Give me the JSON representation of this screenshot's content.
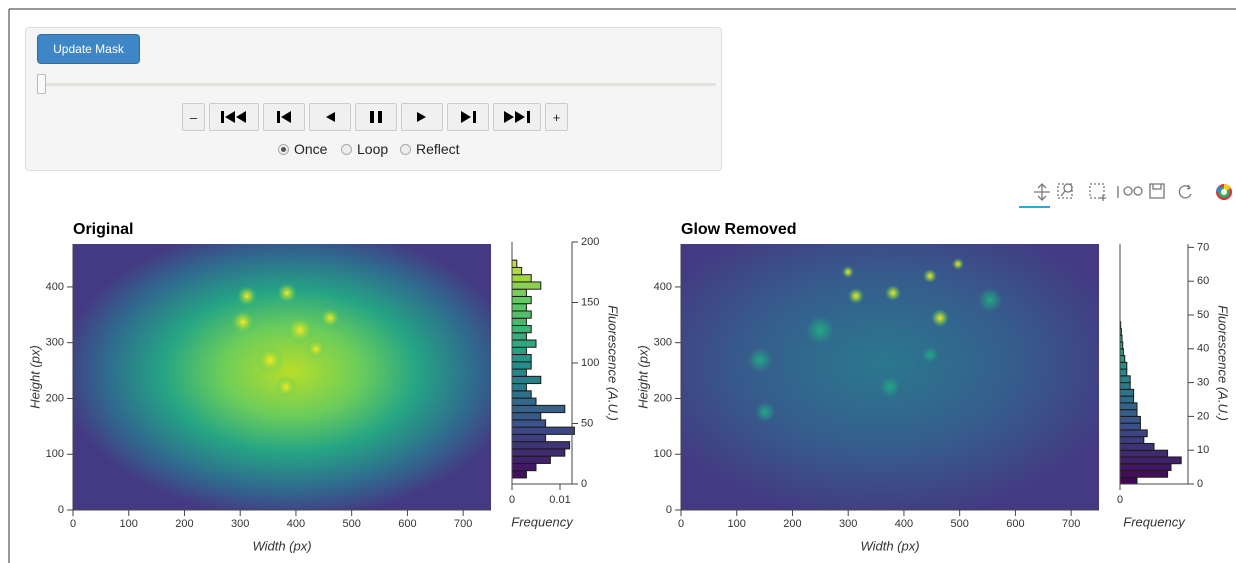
{
  "controls": {
    "update_button": "Update Mask",
    "step_minus": "–",
    "step_plus": "+",
    "loop_options": [
      "Once",
      "Loop",
      "Reflect"
    ],
    "selected_option": 0
  },
  "chart_data": [
    {
      "type": "image",
      "title": "Original",
      "xlabel": "Width (px)",
      "ylabel": "Height (px)",
      "xlim": [
        0,
        750
      ],
      "ylim": [
        0,
        477
      ],
      "xticks": [
        0,
        100,
        200,
        300,
        400,
        500,
        600,
        700
      ],
      "yticks": [
        0,
        100,
        200,
        300,
        400
      ]
    },
    {
      "type": "histogram",
      "xlabel": "Frequency",
      "ylabel": "Fluorescence (A.U.)",
      "xlim": [
        0,
        0.0125
      ],
      "ylim": [
        0,
        200
      ],
      "xticks": [
        0,
        0.01
      ],
      "yticks": [
        0,
        50,
        100,
        150,
        200
      ],
      "bins": [
        5,
        11,
        17,
        23,
        29,
        35,
        41,
        47,
        53,
        59,
        65,
        71,
        77,
        83,
        89,
        95,
        101,
        107,
        113,
        119,
        125,
        131,
        137,
        143,
        149,
        155,
        161,
        167,
        173,
        179,
        185
      ],
      "values": [
        0.003,
        0.005,
        0.008,
        0.011,
        0.012,
        0.007,
        0.013,
        0.007,
        0.006,
        0.011,
        0.005,
        0.004,
        0.003,
        0.006,
        0.003,
        0.004,
        0.004,
        0.003,
        0.005,
        0.003,
        0.004,
        0.003,
        0.004,
        0.003,
        0.004,
        0.003,
        0.006,
        0.004,
        0.002,
        0.001
      ],
      "cmap": [
        "#440154",
        "#3b528b",
        "#21918c",
        "#5ec962",
        "#fde725"
      ]
    },
    {
      "type": "image",
      "title": "Glow Removed",
      "xlabel": "Width (px)",
      "ylabel": "Height (px)",
      "xlim": [
        0,
        750
      ],
      "ylim": [
        0,
        477
      ],
      "xticks": [
        0,
        100,
        200,
        300,
        400,
        500,
        600,
        700
      ],
      "yticks": [
        0,
        100,
        200,
        300,
        400
      ]
    },
    {
      "type": "histogram",
      "xlabel": "Frequency",
      "ylabel": "Fluorescence (A.U.)",
      "xlim": [
        0,
        0.1
      ],
      "ylim": [
        0,
        71
      ],
      "xticks": [
        0
      ],
      "yticks": [
        0,
        10,
        20,
        30,
        40,
        50,
        60,
        70
      ],
      "bins": [
        0,
        2,
        4,
        6,
        8,
        10,
        12,
        14,
        16,
        18,
        20,
        22,
        24,
        26,
        28,
        30,
        32,
        34,
        36,
        38,
        40,
        42,
        44,
        46,
        48
      ],
      "values": [
        0.025,
        0.07,
        0.075,
        0.09,
        0.07,
        0.05,
        0.035,
        0.04,
        0.03,
        0.03,
        0.025,
        0.025,
        0.02,
        0.02,
        0.015,
        0.015,
        0.01,
        0.01,
        0.007,
        0.005,
        0.004,
        0.003,
        0.002,
        0.001
      ],
      "cmap": [
        "#440154",
        "#3b528b",
        "#21918c",
        "#5ec962",
        "#fde725"
      ]
    }
  ]
}
